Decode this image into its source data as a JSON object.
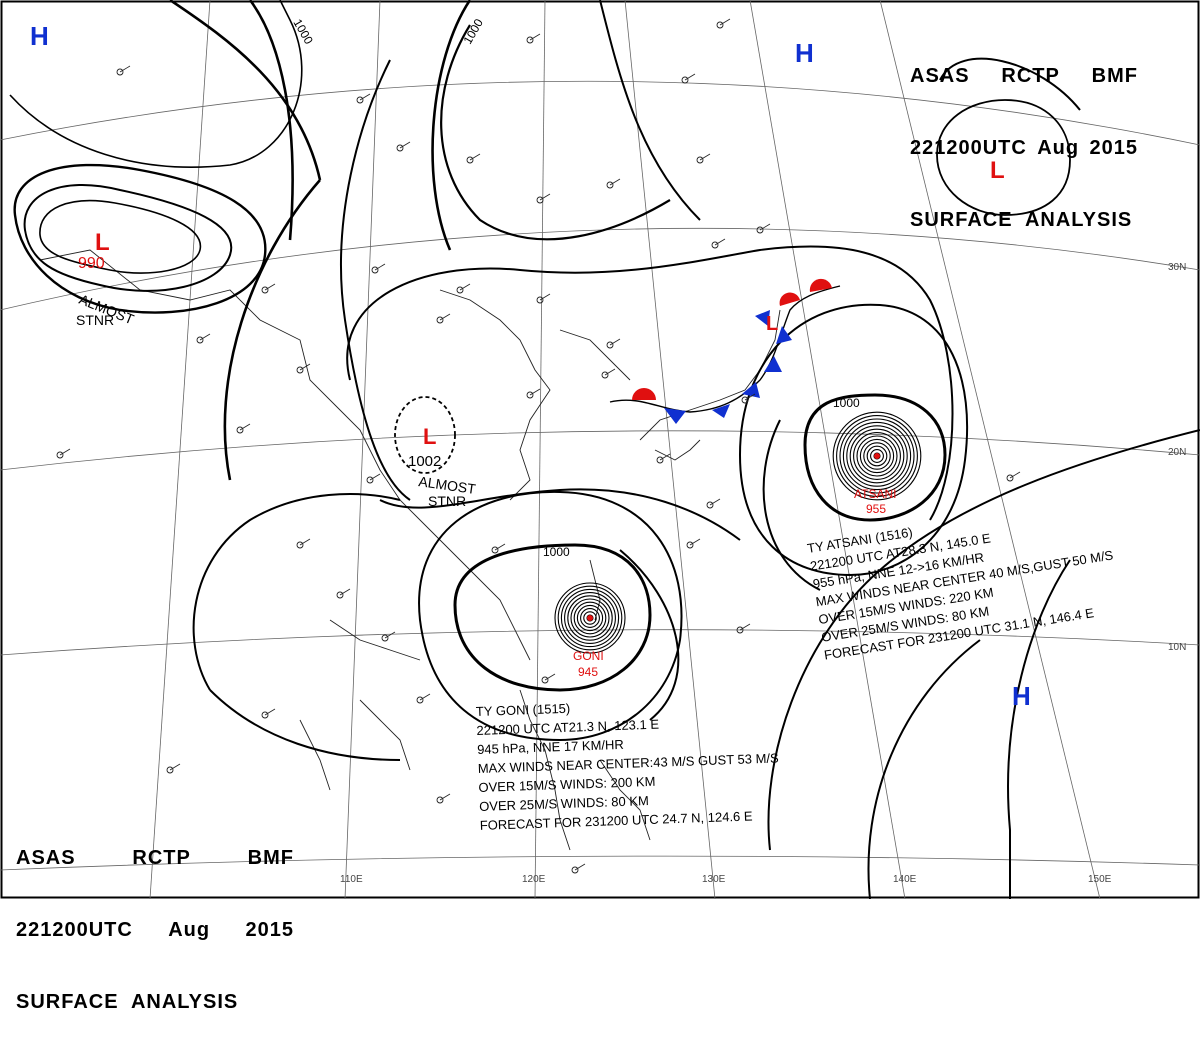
{
  "title": {
    "line1": [
      "ASAS",
      "RCTP",
      "BMF"
    ],
    "line2": [
      "221200UTC",
      "Aug",
      "2015"
    ],
    "line3": "SURFACE  ANALYSIS"
  },
  "pressure_centers": [
    {
      "letter": "H",
      "type": "high",
      "color": "#1030d0"
    },
    {
      "letter": "H",
      "type": "high",
      "color": "#1030d0"
    },
    {
      "letter": "H",
      "type": "high",
      "color": "#1030d0"
    },
    {
      "letter": "L",
      "type": "low",
      "color": "#e01010"
    },
    {
      "letter": "L",
      "type": "low",
      "color": "#e01010",
      "value": "990"
    },
    {
      "letter": "L",
      "type": "low",
      "color": "#e01010",
      "value": "1002"
    },
    {
      "letter": "L",
      "type": "low",
      "color": "#e01010"
    }
  ],
  "stationary_notes": [
    {
      "line1": "ALMOST",
      "line2": "STNR"
    },
    {
      "line1": "ALMOST",
      "line2": "STNR"
    }
  ],
  "isobar_labels": [
    "1000",
    "1000",
    "1000",
    "1000"
  ],
  "typhoons": [
    {
      "name": "ATSANI",
      "pressure": "955",
      "info": [
        "TY  ATSANI  (1516)",
        "221200  UTC  AT28.3 N, 145.0 E",
        "955 hPa, NNE  12->16 KM/HR",
        "MAX WINDS NEAR CENTER 40 M/S,GUST 50 M/S",
        "OVER 15M/S WINDS: 220 KM",
        "OVER 25M/S WINDS: 80 KM",
        "FORECAST FOR 231200 UTC 31.1 N, 146.4 E"
      ]
    },
    {
      "name": "GONI",
      "pressure": "945",
      "info": [
        "TY  GONI  (1515)",
        "221200 UTC  AT21.3 N, 123.1 E",
        "945 hPa, NNE  17 KM/HR",
        "MAX WINDS NEAR CENTER:43 M/S GUST 53 M/S",
        "OVER 15M/S WINDS: 200 KM",
        "OVER 25M/S WINDS: 80 KM",
        "FORECAST FOR 231200 UTC 24.7 N, 124.6 E"
      ]
    }
  ],
  "lat_labels": [
    "30N",
    "20N",
    "10N"
  ],
  "lon_labels": [
    "110E",
    "120E",
    "130E",
    "140E",
    "150E"
  ],
  "colors": {
    "high": "#1030d0",
    "low": "#e01010",
    "front_warm": "#e01010",
    "front_cold": "#1030d0"
  }
}
